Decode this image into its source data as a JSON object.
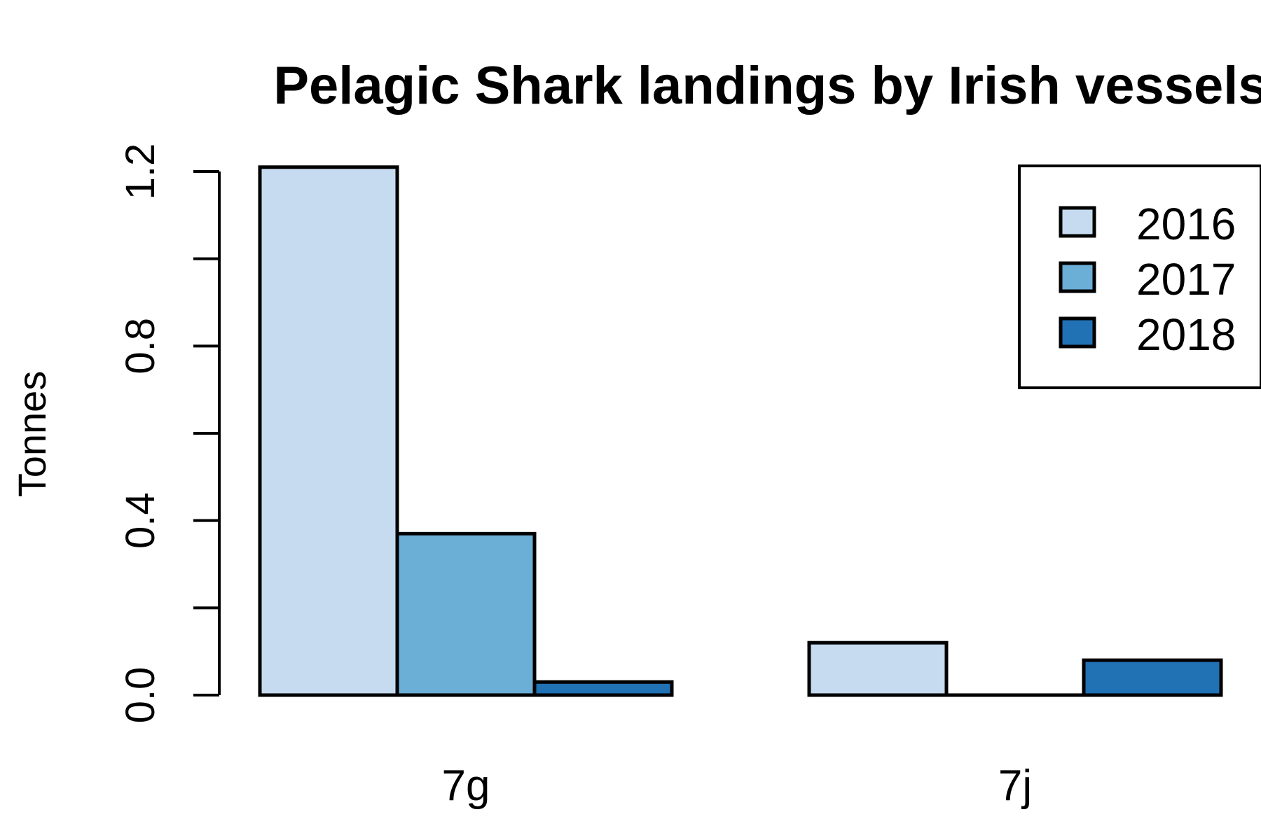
{
  "chart_data": {
    "type": "bar",
    "title": "Pelagic Shark landings by Irish vessels",
    "ylabel": "Tonnes",
    "xlabel": "",
    "ylim": [
      0,
      1.2
    ],
    "yticks": [
      0.0,
      0.2,
      0.4,
      0.6,
      0.8,
      1.0,
      1.2
    ],
    "ytick_labels": [
      "0.0",
      "",
      "0.4",
      "",
      "0.8",
      "",
      "1.2"
    ],
    "categories": [
      "7g",
      "7j"
    ],
    "series": [
      {
        "name": "2016",
        "color": "#c6dbef",
        "values": [
          1.21,
          0.12
        ]
      },
      {
        "name": "2017",
        "color": "#6baed6",
        "values": [
          0.37,
          0.0
        ]
      },
      {
        "name": "2018",
        "color": "#2171b5",
        "values": [
          0.03,
          0.08
        ]
      }
    ],
    "legend": "top-right",
    "grid": false
  }
}
